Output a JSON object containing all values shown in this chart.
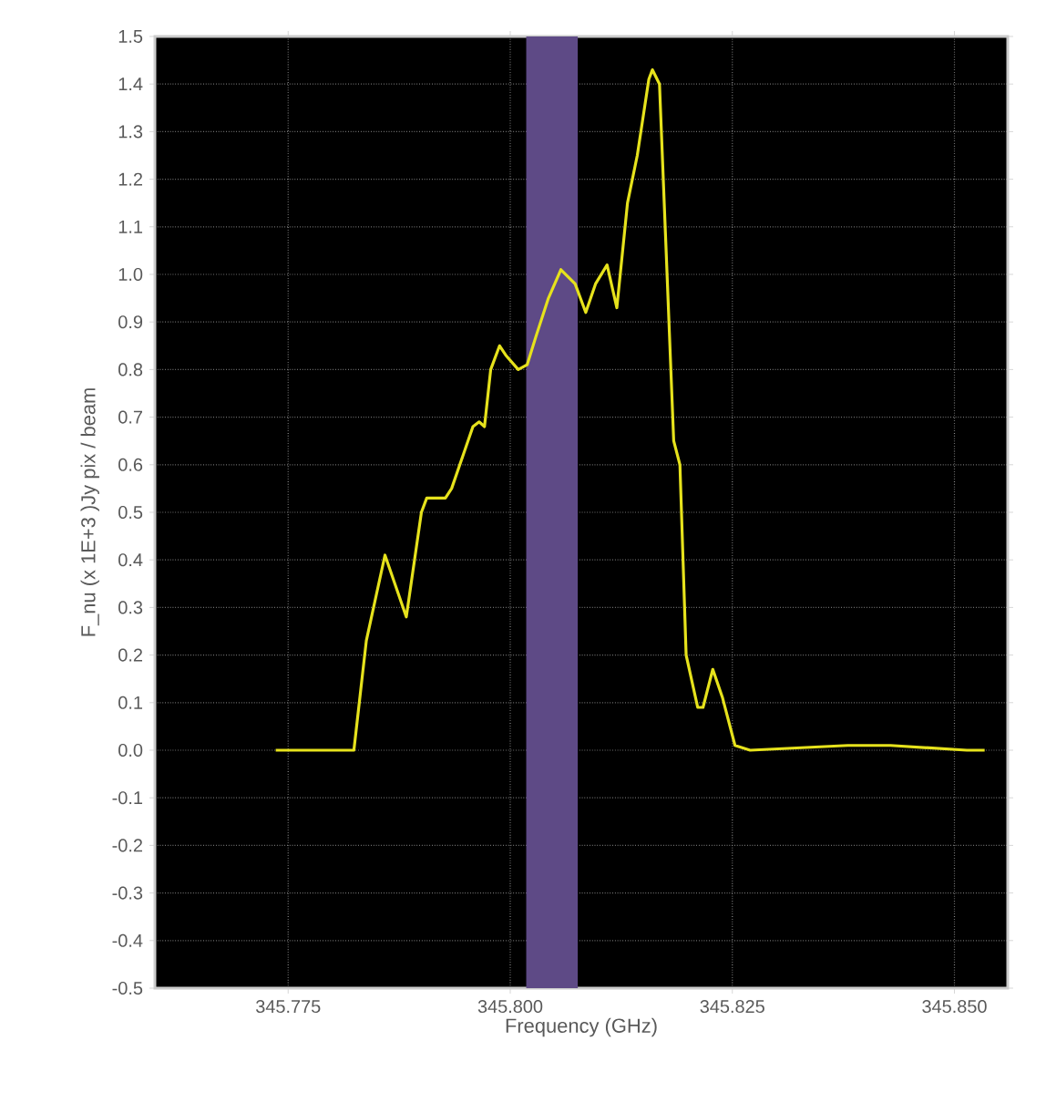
{
  "chart_data": {
    "type": "line",
    "xlabel": "Frequency (GHz)",
    "ylabel": "F_nu (x 1E+3 )Jy pix / beam",
    "x": [
      345.7736,
      345.7824,
      345.7838,
      345.7859,
      345.7883,
      345.79,
      345.7906,
      345.7927,
      345.7934,
      345.7958,
      345.7965,
      345.7971,
      345.7978,
      345.7988,
      345.7995,
      345.8009,
      345.8019,
      345.8029,
      345.8043,
      345.8057,
      345.8073,
      345.8085,
      345.8096,
      345.8109,
      345.812,
      345.8132,
      345.8143,
      345.8156,
      345.816,
      345.8168,
      345.8184,
      345.8191,
      345.8198,
      345.8211,
      345.8217,
      345.8228,
      345.8239,
      345.8253,
      345.827,
      345.838,
      345.8428,
      345.8514,
      345.8534
    ],
    "series": [
      {
        "color": "#e6e21c",
        "values": [
          0.0,
          0.0,
          0.23,
          0.41,
          0.28,
          0.5,
          0.53,
          0.53,
          0.55,
          0.68,
          0.69,
          0.68,
          0.8,
          0.85,
          0.83,
          0.8,
          0.81,
          0.87,
          0.95,
          1.01,
          0.98,
          0.92,
          0.98,
          1.02,
          0.93,
          1.15,
          1.25,
          1.41,
          1.43,
          1.4,
          0.65,
          0.6,
          0.2,
          0.09,
          0.09,
          0.17,
          0.11,
          0.01,
          0.0,
          0.01,
          0.01,
          0.0,
          0.0
        ]
      }
    ],
    "xlim": [
      345.76,
      345.856
    ],
    "ylim": [
      -0.5,
      1.5
    ],
    "xticks": [
      345.775,
      {
        "value": 345.8,
        "label": "345.800"
      },
      345.825,
      {
        "value": 345.85,
        "label": "345.850"
      }
    ],
    "yticks": [
      -0.5,
      -0.4,
      -0.3,
      -0.2,
      -0.1,
      {
        "value": 0,
        "label": "0.0"
      },
      0.1,
      0.2,
      0.3,
      0.4,
      0.5,
      0.6,
      0.7,
      0.8,
      0.9,
      {
        "value": 1,
        "label": "1.0"
      },
      1.1,
      1.2,
      1.3,
      1.4,
      1.5
    ],
    "bands": [
      {
        "axis": "x",
        "from": 345.8018,
        "to": 345.8076,
        "color": "#5e4a86"
      }
    ],
    "grid": true,
    "line_style": "solid"
  }
}
